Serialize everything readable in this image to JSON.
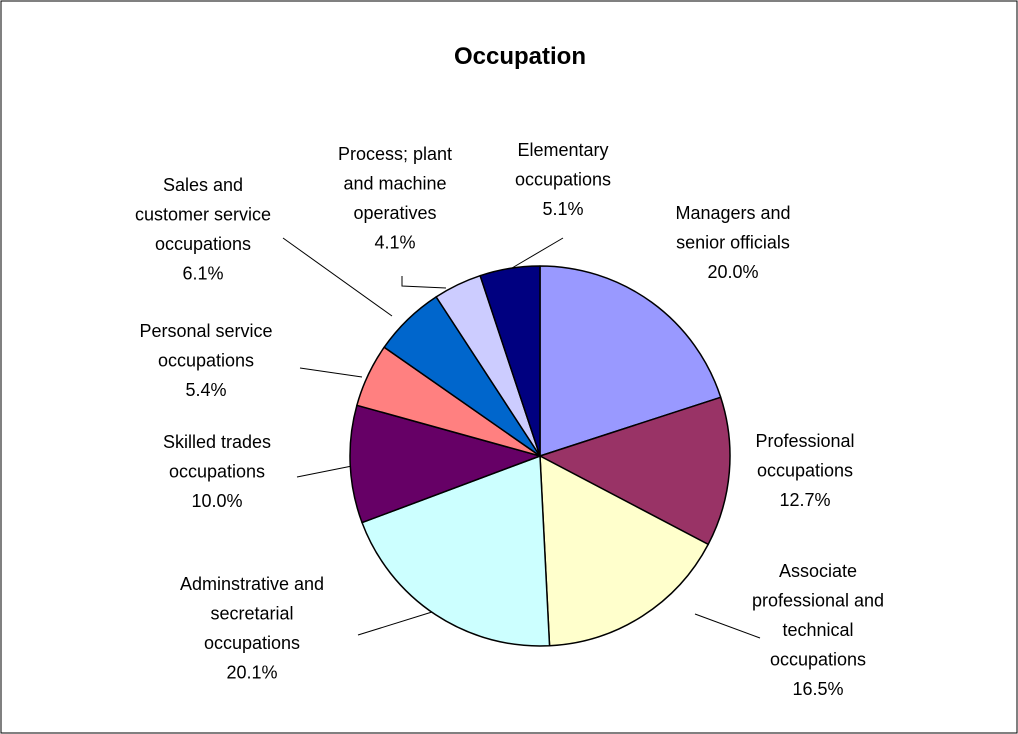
{
  "chart_data": {
    "type": "pie",
    "title": "Occupation",
    "categories": [
      "Managers and senior officials",
      "Professional occupations",
      "Associate professional and technical occupations",
      "Adminstrative and secretarial occupations",
      "Skilled trades occupations",
      "Personal service occupations",
      "Sales and customer service occupations",
      "Process; plant and machine operatives",
      "Elementary occupations"
    ],
    "values": [
      20.0,
      12.7,
      16.5,
      20.1,
      10.0,
      5.4,
      6.1,
      4.1,
      5.1
    ],
    "value_labels": [
      "20.0%",
      "12.7%",
      "16.5%",
      "20.1%",
      "10.0%",
      "5.4%",
      "6.1%",
      "4.1%",
      "5.1%"
    ],
    "colors": [
      "#9999ff",
      "#993366",
      "#ffffcc",
      "#ccffff",
      "#660066",
      "#ff8080",
      "#0066cc",
      "#ccccff",
      "#000080"
    ]
  }
}
